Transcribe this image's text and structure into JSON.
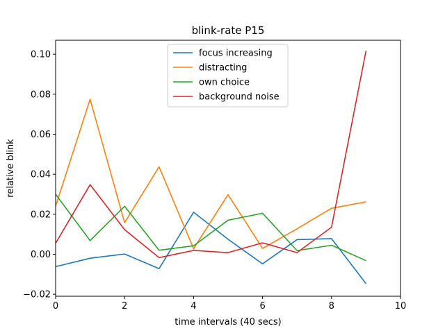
{
  "chart_data": {
    "type": "line",
    "title": "blink-rate P15",
    "xlabel": "time intervals (40 secs)",
    "ylabel": "relative blink",
    "xlim": [
      0,
      10
    ],
    "ylim": [
      -0.021,
      0.107
    ],
    "xticks": [
      0,
      2,
      4,
      6,
      8,
      10
    ],
    "xtick_labels": [
      "0",
      "2",
      "4",
      "6",
      "8",
      "10"
    ],
    "yticks": [
      -0.02,
      0.0,
      0.02,
      0.04,
      0.06,
      0.08,
      0.1
    ],
    "ytick_labels": [
      "−0.02",
      "0.00",
      "0.02",
      "0.04",
      "0.06",
      "0.08",
      "0.10"
    ],
    "grid": false,
    "legend_position": "top-center",
    "x": [
      0,
      1,
      2,
      3,
      4,
      5,
      6,
      7,
      8,
      9
    ],
    "series": [
      {
        "name": "focus increasing",
        "color": "#1f77b4",
        "values": [
          -0.0062,
          -0.002,
          0.0001,
          -0.0072,
          0.021,
          0.0075,
          -0.0048,
          0.0073,
          0.0078,
          -0.0147
        ]
      },
      {
        "name": "distracting",
        "color": "#ff7f0e",
        "values": [
          0.024,
          0.0775,
          0.0158,
          0.0437,
          0.0028,
          0.0298,
          0.0029,
          0.0127,
          0.023,
          0.0262
        ]
      },
      {
        "name": "own choice",
        "color": "#2ca02c",
        "values": [
          0.03,
          0.0068,
          0.024,
          0.002,
          0.0042,
          0.017,
          0.0205,
          0.0018,
          0.0045,
          -0.0032
        ]
      },
      {
        "name": "background noise",
        "color": "#d62728",
        "values": [
          0.0055,
          0.0348,
          0.0123,
          -0.0017,
          0.0019,
          0.0008,
          0.0057,
          0.0008,
          0.0135,
          0.1017
        ]
      }
    ]
  }
}
